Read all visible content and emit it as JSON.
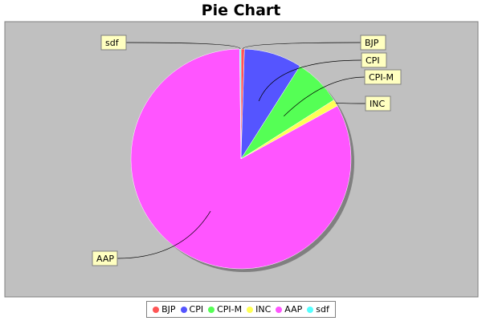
{
  "chart_data": {
    "type": "pie",
    "title": "Pie Chart",
    "labels": [
      "BJP",
      "CPI",
      "CPI-M",
      "INC",
      "AAP",
      "sdf"
    ],
    "values": [
      0.5,
      8.5,
      7.0,
      1.0,
      82.8,
      0.2
    ],
    "colors": [
      "#ff5555",
      "#5555ff",
      "#55ff55",
      "#ffff55",
      "#ff55ff",
      "#55ffff"
    ],
    "legend_position": "bottom"
  },
  "style": {
    "plot_background": "#c0c0c0",
    "label_background": "#ffffc0",
    "shadow": "#808080"
  }
}
